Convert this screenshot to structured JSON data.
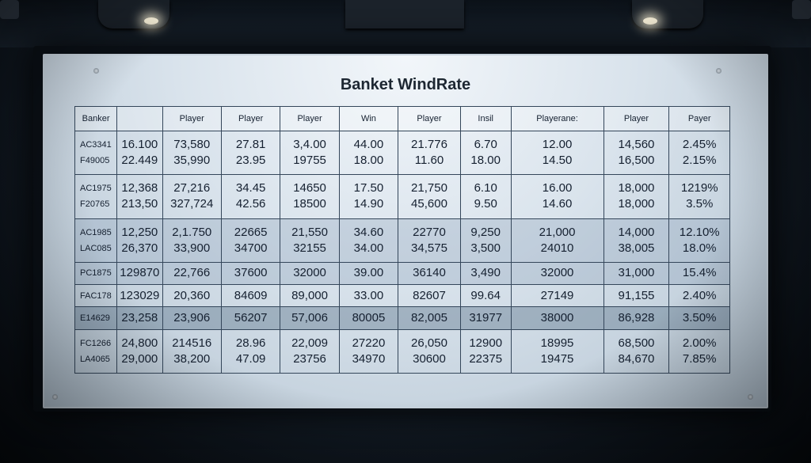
{
  "title": "Banket WindRate",
  "columns": [
    "Banker",
    "",
    "Player",
    "Player",
    "Player",
    "Win",
    "Player",
    "Insil",
    "Playerane:",
    "Player",
    "Payer"
  ],
  "rows": [
    {
      "cells": [
        [
          "AC3341",
          "F49005"
        ],
        [
          "16.100",
          "22.449"
        ],
        [
          "73,580",
          "35,990"
        ],
        [
          "27.81",
          "23.95"
        ],
        [
          "3,4.00",
          "19755"
        ],
        [
          "44.00",
          "18.00"
        ],
        [
          "21.776",
          "11.60"
        ],
        [
          "6.70",
          "18.00"
        ],
        [
          "12.00",
          "14.50"
        ],
        [
          "14,560",
          "16,500"
        ],
        [
          "2.45%",
          "2.15%"
        ]
      ]
    },
    {
      "cells": [
        [
          "AC1975",
          "F20765"
        ],
        [
          "12,368",
          "213,50"
        ],
        [
          "27,216",
          "327,724"
        ],
        [
          "34.45",
          "42.56"
        ],
        [
          "14650",
          "18500"
        ],
        [
          "17.50",
          "14.90"
        ],
        [
          "21,750",
          "45,600"
        ],
        [
          "6.10",
          "9.50"
        ],
        [
          "16.00",
          "14.60"
        ],
        [
          "18,000",
          "18,000"
        ],
        [
          "1219%",
          "3.5%"
        ]
      ]
    },
    {
      "cells": [
        [
          "AC1985",
          "LAC085"
        ],
        [
          "12,250",
          "26,370"
        ],
        [
          "2,1.750",
          "33,900"
        ],
        [
          "22665",
          "34700"
        ],
        [
          "21,550",
          "32155"
        ],
        [
          "34.60",
          "34.00"
        ],
        [
          "22770",
          "34,575"
        ],
        [
          "9,250",
          "3,500"
        ],
        [
          "21,000",
          "24010"
        ],
        [
          "14,000",
          "38,005"
        ],
        [
          "12.10%",
          "18.0%"
        ]
      ]
    },
    {
      "cells": [
        [
          "PC1875"
        ],
        [
          "129870"
        ],
        [
          "22,766"
        ],
        [
          "37600"
        ],
        [
          "32000"
        ],
        [
          "39.00"
        ],
        [
          "36140"
        ],
        [
          "3,490"
        ],
        [
          "32000"
        ],
        [
          "31,000"
        ],
        [
          "15.4%"
        ]
      ]
    },
    {
      "cells": [
        [
          "FAC178"
        ],
        [
          "123029"
        ],
        [
          "20,360"
        ],
        [
          "84609"
        ],
        [
          "89,000"
        ],
        [
          "33.00"
        ],
        [
          "82607"
        ],
        [
          "99.64"
        ],
        [
          "27149"
        ],
        [
          "91,155"
        ],
        [
          "2.40%"
        ]
      ]
    },
    {
      "cells": [
        [
          "E14629"
        ],
        [
          "23,258"
        ],
        [
          "23,906"
        ],
        [
          "56207"
        ],
        [
          "57,006"
        ],
        [
          "80005"
        ],
        [
          "82,005"
        ],
        [
          "31977"
        ],
        [
          "38000"
        ],
        [
          "86,928"
        ],
        [
          "3.50%"
        ]
      ]
    },
    {
      "cells": [
        [
          "FC1266",
          "LA4065"
        ],
        [
          "24,800",
          "29,000"
        ],
        [
          "214516",
          "38,200"
        ],
        [
          "28.96",
          "47.09"
        ],
        [
          "22,009",
          "23756"
        ],
        [
          "27220",
          "34970"
        ],
        [
          "26,050",
          "30600"
        ],
        [
          "12900",
          "22375"
        ],
        [
          "18995",
          "19475"
        ],
        [
          "68,500",
          "84,670"
        ],
        [
          "2.00%",
          "7.85%"
        ]
      ]
    }
  ]
}
